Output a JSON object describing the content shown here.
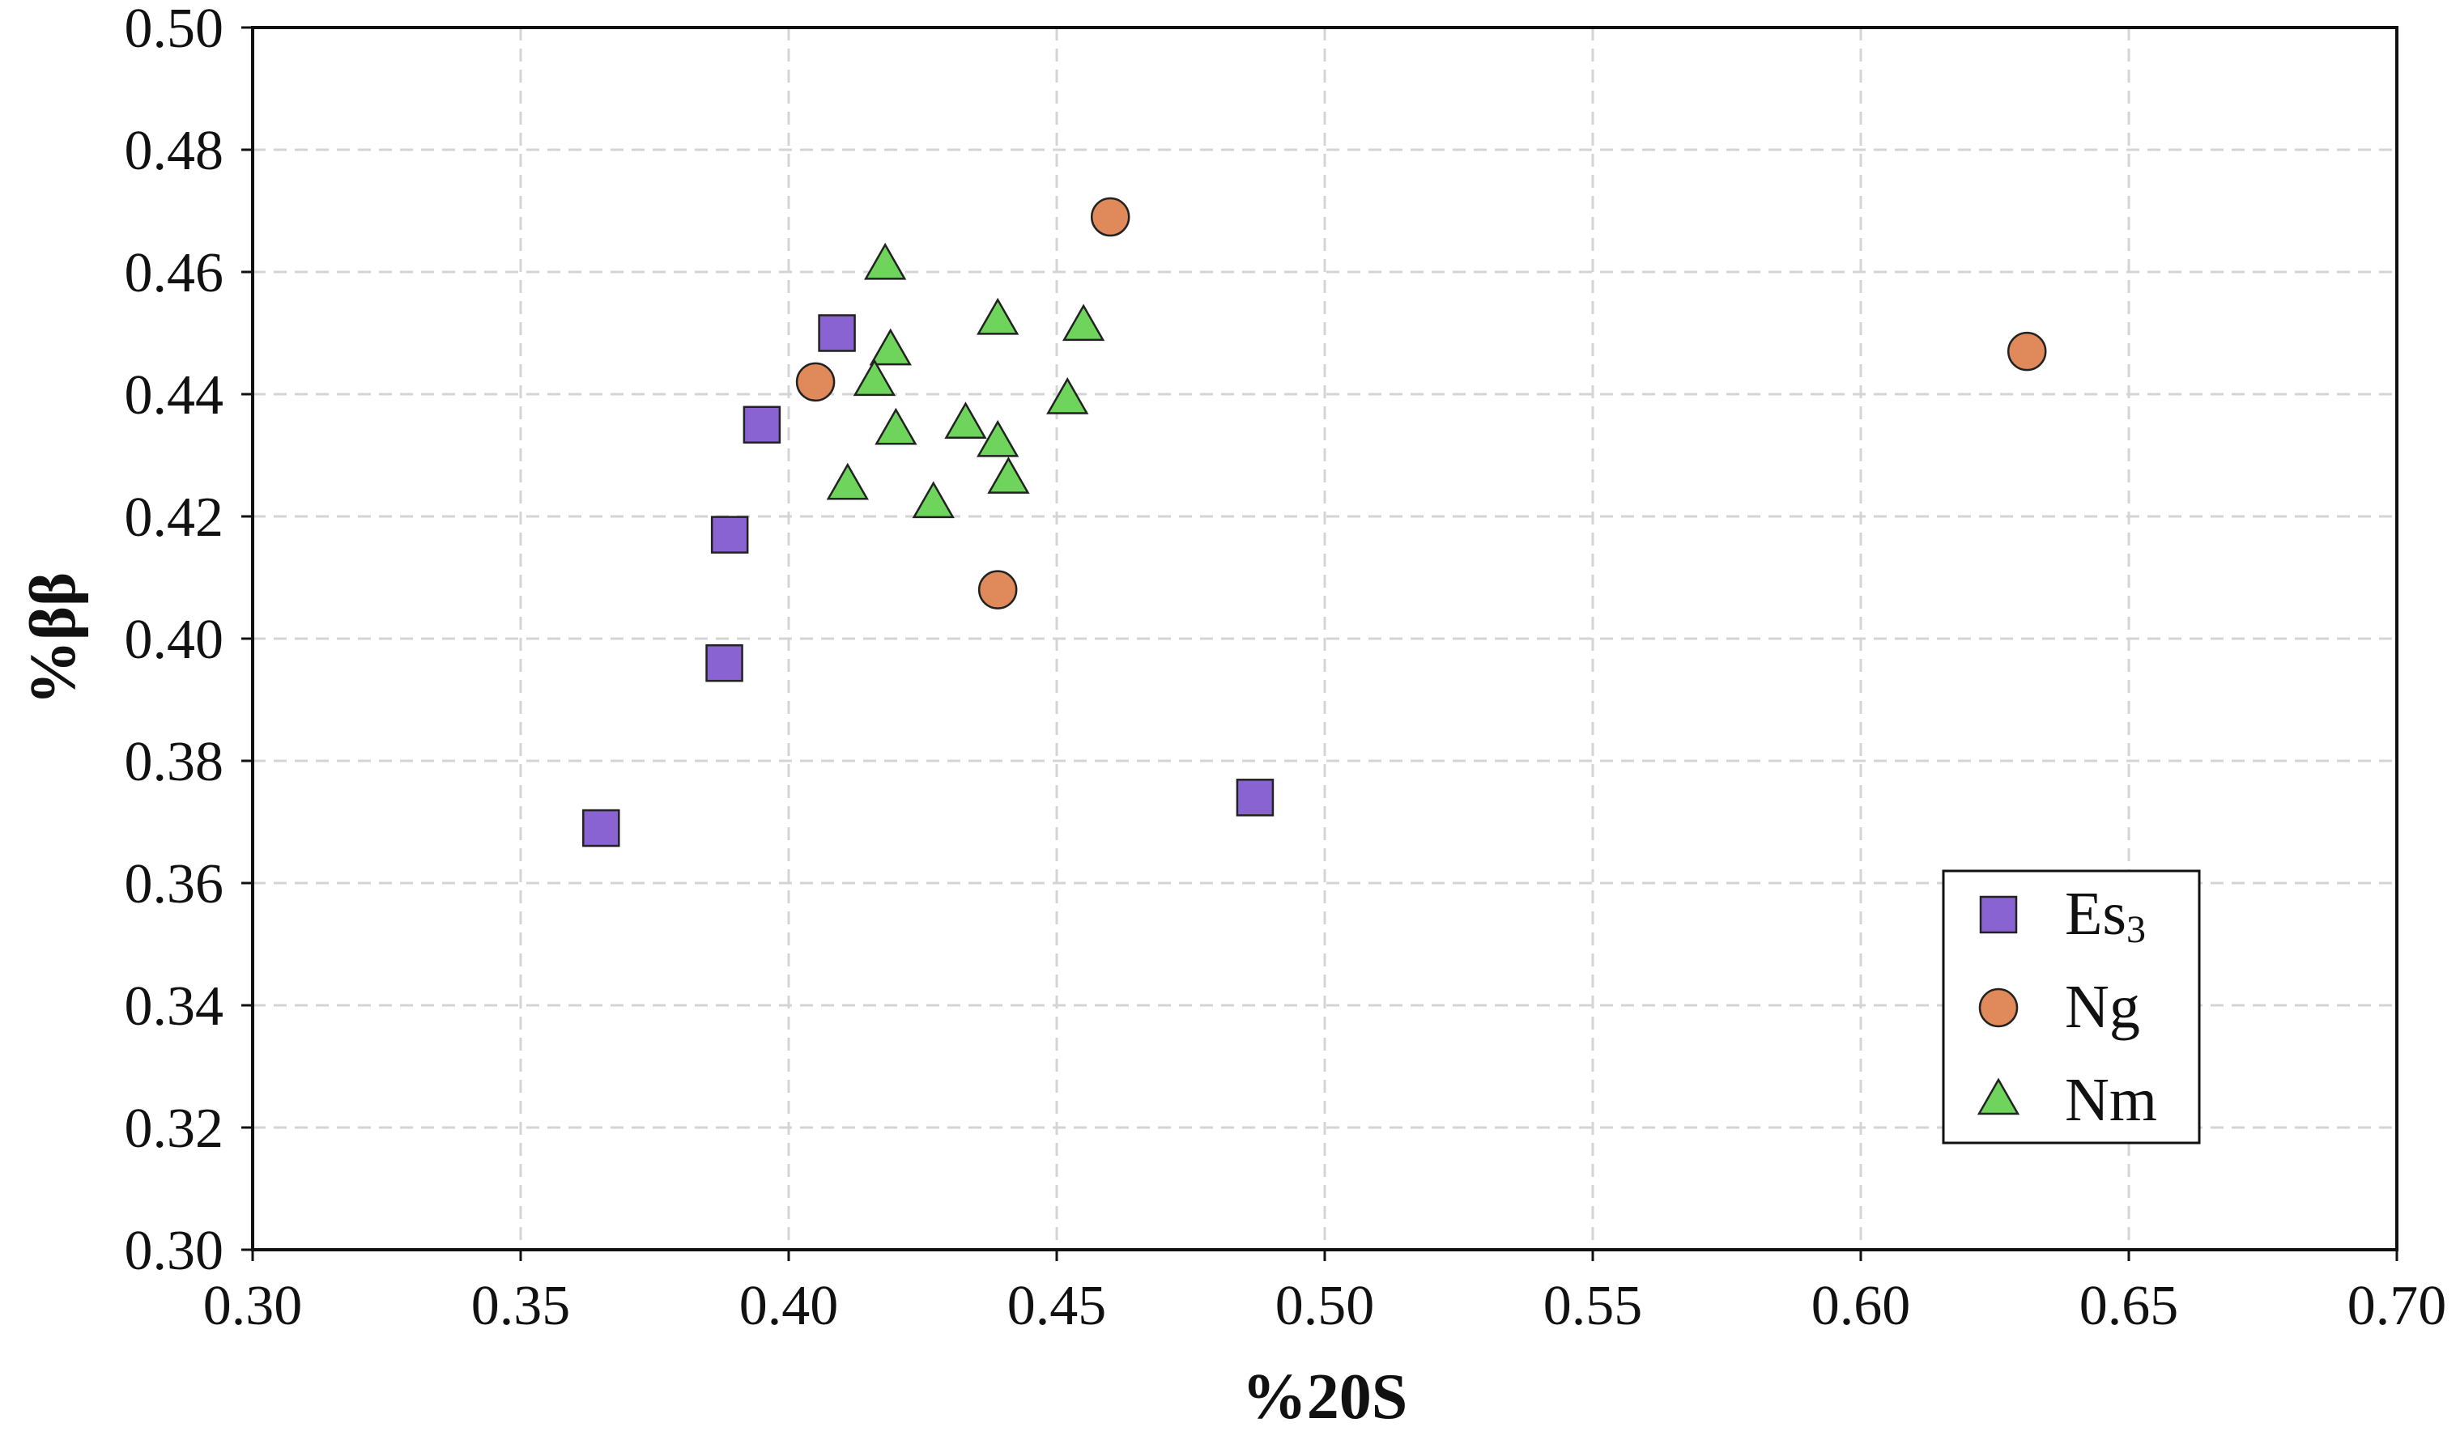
{
  "chart_data": {
    "type": "scatter",
    "title": "",
    "xlabel": "%20S",
    "ylabel": "%ββ",
    "xlim": [
      0.3,
      0.7
    ],
    "ylim": [
      0.3,
      0.5
    ],
    "grid": true,
    "legend_position": "bottom-right",
    "x_ticks": [
      "0.30",
      "0.35",
      "0.40",
      "0.45",
      "0.50",
      "0.55",
      "0.60",
      "0.65",
      "0.70"
    ],
    "y_ticks": [
      "0.30",
      "0.32",
      "0.34",
      "0.36",
      "0.38",
      "0.40",
      "0.42",
      "0.44",
      "0.46",
      "0.48",
      "0.50"
    ],
    "x_tick_values": [
      0.3,
      0.35,
      0.4,
      0.45,
      0.5,
      0.55,
      0.6,
      0.65,
      0.7
    ],
    "y_tick_values": [
      0.3,
      0.32,
      0.34,
      0.36,
      0.38,
      0.4,
      0.42,
      0.44,
      0.46,
      0.48,
      0.5
    ],
    "series": [
      {
        "name": "Es",
        "name_subscript": "3",
        "marker": "square",
        "color": "#8a63d2",
        "points": [
          {
            "x": 0.365,
            "y": 0.369
          },
          {
            "x": 0.388,
            "y": 0.396
          },
          {
            "x": 0.389,
            "y": 0.417
          },
          {
            "x": 0.395,
            "y": 0.435
          },
          {
            "x": 0.409,
            "y": 0.45
          },
          {
            "x": 0.487,
            "y": 0.374
          }
        ]
      },
      {
        "name": "Ng",
        "name_subscript": "",
        "marker": "circle",
        "color": "#e0895a",
        "points": [
          {
            "x": 0.405,
            "y": 0.442
          },
          {
            "x": 0.439,
            "y": 0.408
          },
          {
            "x": 0.46,
            "y": 0.469
          },
          {
            "x": 0.631,
            "y": 0.447
          }
        ]
      },
      {
        "name": "Nm",
        "name_subscript": "",
        "marker": "triangle",
        "color": "#6fd45c",
        "points": [
          {
            "x": 0.418,
            "y": 0.461
          },
          {
            "x": 0.439,
            "y": 0.452
          },
          {
            "x": 0.455,
            "y": 0.451
          },
          {
            "x": 0.419,
            "y": 0.447
          },
          {
            "x": 0.416,
            "y": 0.442
          },
          {
            "x": 0.452,
            "y": 0.439
          },
          {
            "x": 0.42,
            "y": 0.434
          },
          {
            "x": 0.433,
            "y": 0.435
          },
          {
            "x": 0.439,
            "y": 0.432
          },
          {
            "x": 0.441,
            "y": 0.426
          },
          {
            "x": 0.411,
            "y": 0.425
          },
          {
            "x": 0.427,
            "y": 0.422
          }
        ]
      }
    ]
  }
}
